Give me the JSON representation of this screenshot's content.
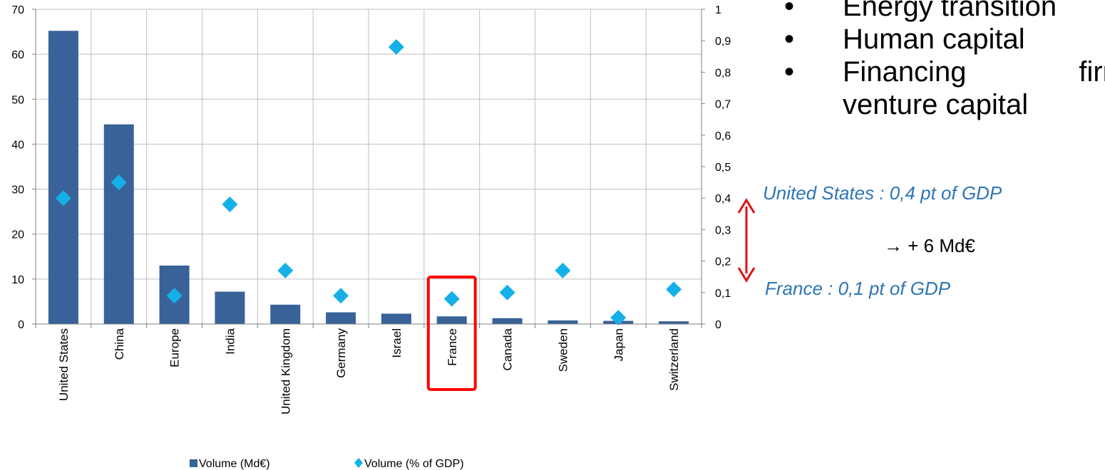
{
  "chart_data": {
    "type": "bar",
    "categories": [
      "United States",
      "China",
      "Europe",
      "India",
      "United Kingdom",
      "Germany",
      "Israel",
      "France",
      "Canada",
      "Sweden",
      "Japan",
      "Switzerland"
    ],
    "series": [
      {
        "name": "Volume (Md€)",
        "type": "bar",
        "axis": "left",
        "color": "#386298",
        "values": [
          65.2,
          44.4,
          13.0,
          7.2,
          4.3,
          2.6,
          2.3,
          1.7,
          1.3,
          0.8,
          0.7,
          0.6
        ]
      },
      {
        "name": "Volume (% of GDP)",
        "type": "scatter",
        "axis": "right",
        "marker": "diamond",
        "color": "#16b0e8",
        "values": [
          0.4,
          0.45,
          0.09,
          0.38,
          0.17,
          0.09,
          0.88,
          0.08,
          0.1,
          0.17,
          0.02,
          0.11
        ]
      }
    ],
    "y_left": {
      "min": 0,
      "max": 70,
      "ticks": [
        "0",
        "10",
        "20",
        "30",
        "40",
        "50",
        "60",
        "70"
      ]
    },
    "y_right": {
      "min": 0,
      "max": 1,
      "ticks": [
        "0",
        "0,1",
        "0,2",
        "0,3",
        "0,4",
        "0,5",
        "0,6",
        "0,7",
        "0,8",
        "0,9",
        "1"
      ]
    },
    "grid": true,
    "legend": "bottom",
    "highlight": {
      "category": "France",
      "color": "#ff0000"
    }
  },
  "bullets": [
    {
      "dot": "•",
      "text": "Energy transition"
    },
    {
      "dot": "•",
      "text": "Human capital"
    },
    {
      "dot": "•",
      "word1": "Financing",
      "word2": "firm"
    },
    {
      "dot": "",
      "text": "venture capital"
    }
  ],
  "annotations": {
    "us": "United States : 0,4 pt of GDP",
    "plus": "→ + 6 Md€",
    "france": "France : 0,1 pt of GDP",
    "arrow_color": "#e01010"
  }
}
